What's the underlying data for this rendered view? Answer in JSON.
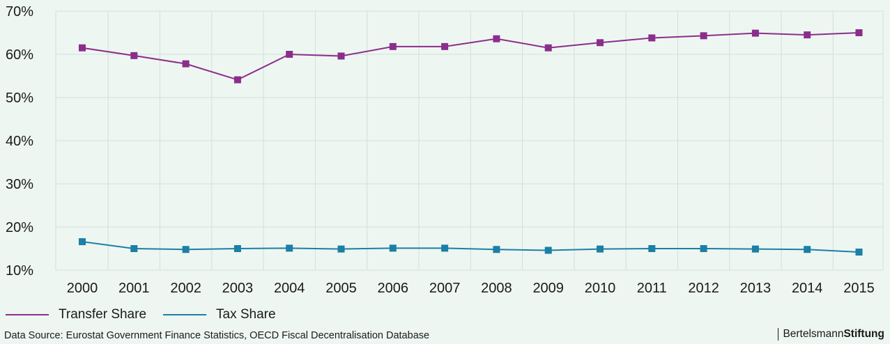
{
  "chart_data": {
    "type": "line",
    "categories": [
      "2000",
      "2001",
      "2002",
      "2003",
      "2004",
      "2005",
      "2006",
      "2007",
      "2008",
      "2009",
      "2010",
      "2011",
      "2012",
      "2013",
      "2014",
      "2015"
    ],
    "y_ticks": [
      "10%",
      "20%",
      "30%",
      "40%",
      "50%",
      "60%",
      "70%"
    ],
    "ylim": [
      10,
      70
    ],
    "grid": true,
    "legend_placement": "bottom-left",
    "series": [
      {
        "name": "Transfer Share",
        "color": "#8b2e8b",
        "values": [
          61.5,
          59.7,
          57.8,
          54.1,
          60.0,
          59.6,
          61.8,
          61.8,
          63.6,
          61.5,
          62.7,
          63.8,
          64.3,
          64.9,
          64.5,
          65.0
        ]
      },
      {
        "name": "Tax Share",
        "color": "#1b7fa6",
        "values": [
          16.6,
          15.0,
          14.8,
          15.0,
          15.1,
          14.9,
          15.1,
          15.1,
          14.8,
          14.6,
          14.9,
          15.0,
          15.0,
          14.9,
          14.8,
          14.2
        ]
      }
    ]
  },
  "legend": {
    "transfer_label": "Transfer Share",
    "tax_label": "Tax Share"
  },
  "footer": {
    "source": "Data Source: Eurostat Government Finance Statistics, OECD Fiscal Decentralisation Database",
    "brand_light": "Bertelsmann",
    "brand_bold": "Stiftung"
  },
  "colors": {
    "background": "#eef6f2",
    "grid": "#cfe2d8",
    "transfer": "#8b2e8b",
    "tax": "#1b7fa6"
  }
}
